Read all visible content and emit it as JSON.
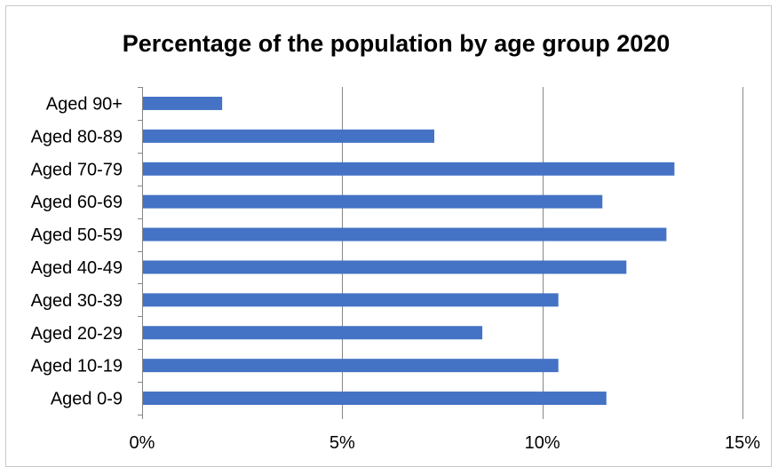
{
  "chart_data": {
    "type": "bar",
    "orientation": "horizontal",
    "title": "Percentage of the population by age group 2020",
    "categories": [
      "Aged 90+",
      "Aged 80-89",
      "Aged 70-79",
      "Aged 60-69",
      "Aged 50-59",
      "Aged 40-49",
      "Aged 30-39",
      "Aged 20-29",
      "Aged 10-19",
      "Aged 0-9"
    ],
    "values": [
      2.0,
      7.3,
      13.3,
      11.5,
      13.1,
      12.1,
      10.4,
      8.5,
      10.4,
      11.6
    ],
    "xlim": [
      0,
      15
    ],
    "xticks": [
      "0%",
      "5%",
      "10%",
      "15%"
    ],
    "xtick_values": [
      0,
      5,
      10,
      15
    ],
    "xlabel": "",
    "ylabel": "",
    "grid": "vertical",
    "legend": "none",
    "bar_color": "#4472C4",
    "grid_color": "#868686",
    "text_color": "#000000"
  }
}
